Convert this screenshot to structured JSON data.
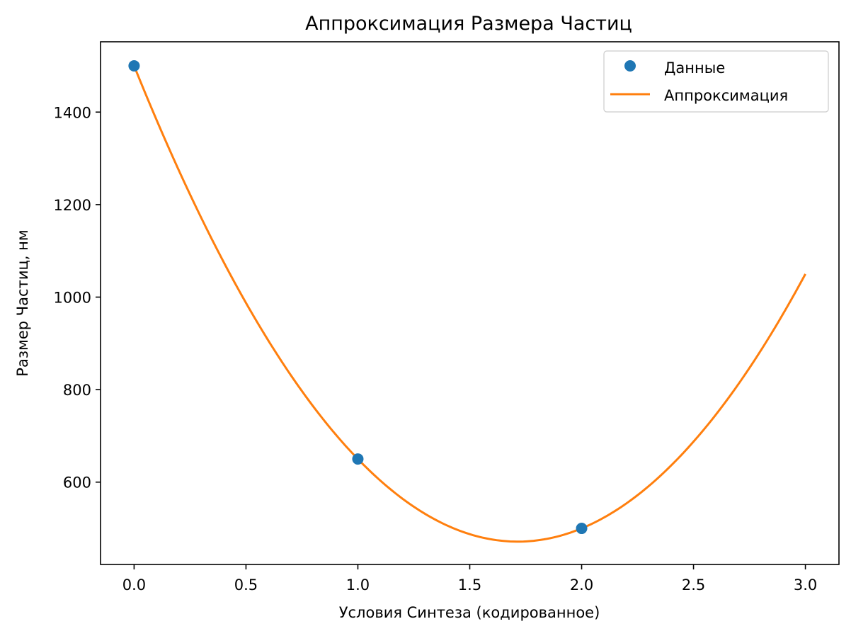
{
  "chart_data": {
    "type": "scatter",
    "title": "Аппроксимация Размера Частиц",
    "xlabel": "Условия Синтеза (кодированное)",
    "ylabel": "Размер Частиц, нм",
    "xlim": [
      -0.15,
      3.15
    ],
    "ylim": [
      422,
      1552
    ],
    "x_ticks": [
      "0.0",
      "0.5",
      "1.0",
      "1.5",
      "2.0",
      "2.5",
      "3.0"
    ],
    "y_ticks": [
      "600",
      "800",
      "1000",
      "1200",
      "1400"
    ],
    "grid": false,
    "legend_position": "top-right",
    "series": [
      {
        "name": "Данные",
        "kind": "markers",
        "color": "#1f77b4",
        "x": [
          0,
          1,
          2
        ],
        "y": [
          1500,
          650,
          500
        ]
      },
      {
        "name": "Аппроксимация",
        "kind": "line",
        "color": "#ff7f0e",
        "model": "quadratic",
        "coefficients": [
          350,
          -1200,
          1500
        ],
        "x_range": [
          0,
          3
        ]
      }
    ]
  }
}
